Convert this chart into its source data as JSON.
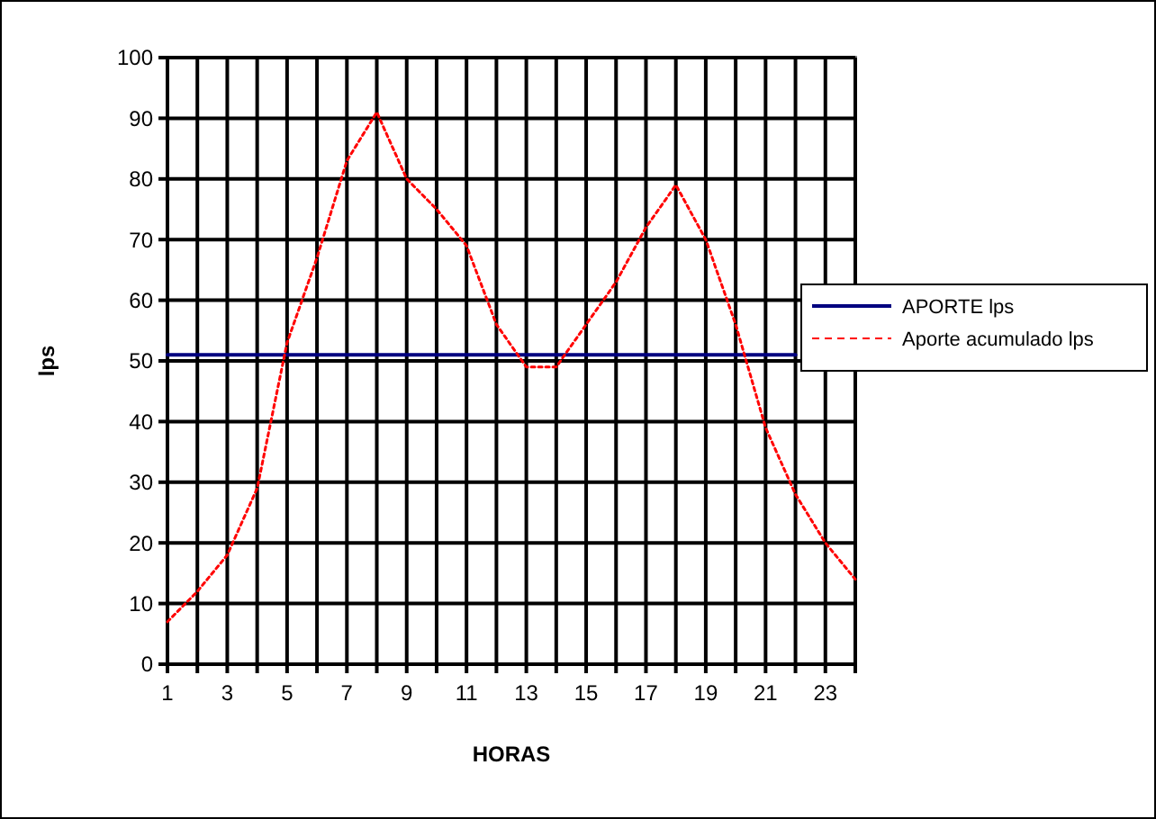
{
  "chart_data": {
    "type": "line",
    "xlabel": "HORAS",
    "ylabel": "lps",
    "x": [
      1,
      2,
      3,
      4,
      5,
      6,
      7,
      8,
      9,
      10,
      11,
      12,
      13,
      14,
      15,
      16,
      17,
      18,
      19,
      20,
      21,
      22,
      23,
      24
    ],
    "series": [
      {
        "name": "APORTE lps",
        "color": "#000080",
        "line_style": "solid",
        "values": [
          51,
          51,
          51,
          51,
          51,
          51,
          51,
          51,
          51,
          51,
          51,
          51,
          51,
          51,
          51,
          51,
          51,
          51,
          51,
          51,
          51,
          51,
          null,
          null
        ]
      },
      {
        "name": "Aporte acumulado lps",
        "color": "#ff0000",
        "line_style": "dotted",
        "values": [
          7,
          12,
          18,
          29,
          53,
          67,
          83,
          91,
          80,
          75,
          69,
          56,
          49,
          49,
          56,
          63,
          72,
          79,
          70,
          56,
          39,
          28,
          20,
          14
        ]
      }
    ],
    "xlim": [
      1,
      24
    ],
    "xticks": [
      1,
      {
        "value": 2,
        "label": null
      },
      3,
      {
        "value": 4,
        "label": null
      },
      5,
      {
        "value": 6,
        "label": null
      },
      7,
      {
        "value": 8,
        "label": null
      },
      9,
      {
        "value": 10,
        "label": null
      },
      11,
      {
        "value": 12,
        "label": null
      },
      13,
      {
        "value": 14,
        "label": null
      },
      15,
      {
        "value": 16,
        "label": null
      },
      17,
      {
        "value": 18,
        "label": null
      },
      19,
      {
        "value": 20,
        "label": null
      },
      21,
      {
        "value": 22,
        "label": null
      },
      23,
      {
        "value": 24,
        "label": null
      }
    ],
    "ylim": [
      0,
      100
    ],
    "yticks": [
      0,
      10,
      20,
      30,
      40,
      50,
      60,
      70,
      80,
      90,
      100
    ],
    "grid": true,
    "legend": "right",
    "marker": "none"
  }
}
